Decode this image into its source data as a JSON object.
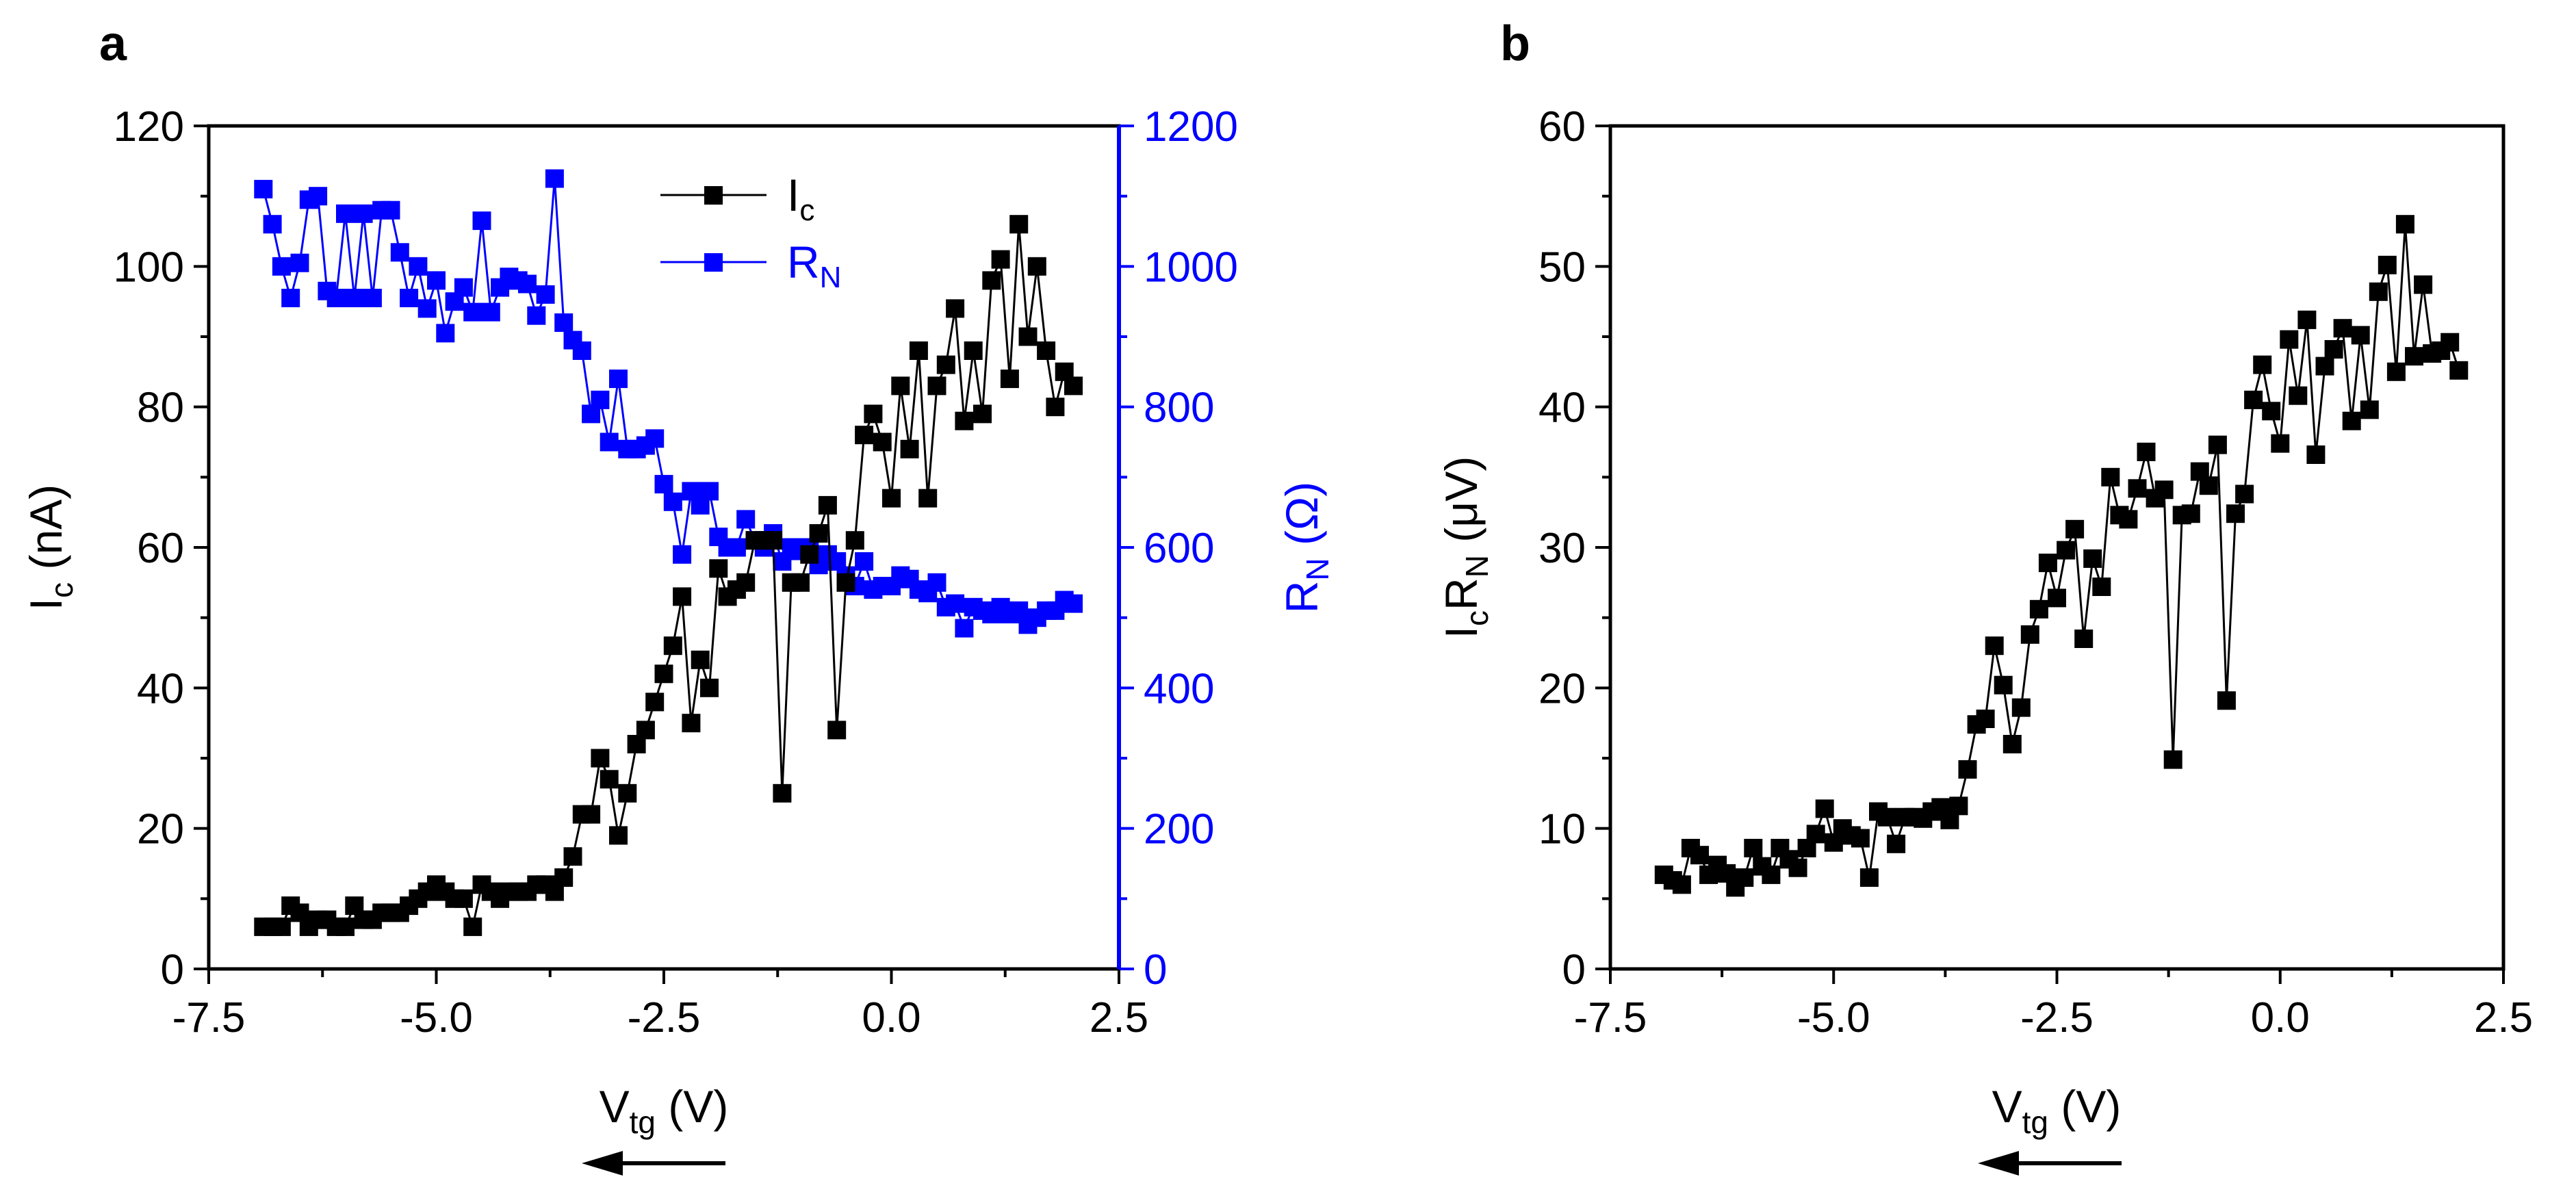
{
  "chart_data": [
    {
      "panel": "a",
      "type": "scatter",
      "xlabel": "V",
      "xlabel_sub": "tg",
      "xlabel_unit": " (V)",
      "ylabel_left": "I",
      "ylabel_left_sub": "c",
      "ylabel_left_unit": " (nA)",
      "ylabel_right": "R",
      "ylabel_right_sub": "N",
      "ylabel_right_unit": " (Ω)",
      "xlim": [
        -7.5,
        2.5
      ],
      "ylim_left": [
        0,
        120
      ],
      "ylim_right": [
        0,
        1200
      ],
      "xticks": [
        -7.5,
        -5.0,
        -2.5,
        0.0,
        2.5
      ],
      "xtick_labels": [
        "-7.5",
        "-5.0",
        "-2.5",
        "0.0",
        "2.5"
      ],
      "yticks_left": [
        0,
        20,
        40,
        60,
        80,
        100,
        120
      ],
      "ytick_labels_left": [
        "0",
        "20",
        "40",
        "60",
        "80",
        "100",
        "120"
      ],
      "yticks_right": [
        0,
        200,
        400,
        600,
        800,
        1000,
        1200
      ],
      "ytick_labels_right": [
        "0",
        "200",
        "400",
        "600",
        "800",
        "1000",
        "1200"
      ],
      "legend": [
        {
          "label": "I",
          "sub": "c",
          "color": "#000000"
        },
        {
          "label": "R",
          "sub": "N",
          "color": "#0000ff"
        }
      ],
      "series": [
        {
          "name": "Ic",
          "axis": "left",
          "color": "#000000",
          "x": [
            -6.9,
            -6.8,
            -6.7,
            -6.6,
            -6.5,
            -6.4,
            -6.3,
            -6.2,
            -6.1,
            -6.0,
            -5.9,
            -5.8,
            -5.7,
            -5.6,
            -5.5,
            -5.4,
            -5.3,
            -5.2,
            -5.1,
            -5.0,
            -4.9,
            -4.8,
            -4.7,
            -4.6,
            -4.5,
            -4.4,
            -4.3,
            -4.2,
            -4.1,
            -4.0,
            -3.9,
            -3.8,
            -3.7,
            -3.6,
            -3.5,
            -3.4,
            -3.3,
            -3.2,
            -3.1,
            -3.0,
            -2.9,
            -2.8,
            -2.7,
            -2.6,
            -2.5,
            -2.4,
            -2.3,
            -2.2,
            -2.1,
            -2.0,
            -1.9,
            -1.8,
            -1.7,
            -1.6,
            -1.5,
            -1.4,
            -1.3,
            -1.2,
            -1.1,
            -1.0,
            -0.9,
            -0.8,
            -0.7,
            -0.6,
            -0.5,
            -0.4,
            -0.3,
            -0.2,
            -0.1,
            0.0,
            0.1,
            0.2,
            0.3,
            0.4,
            0.5,
            0.6,
            0.7,
            0.8,
            0.9,
            1.0,
            1.1,
            1.2,
            1.3,
            1.4,
            1.5,
            1.6,
            1.7,
            1.8,
            1.9,
            2.0
          ],
          "y": [
            6,
            6,
            6,
            9,
            8,
            6,
            7,
            7,
            6,
            6,
            9,
            7,
            7,
            8,
            8,
            8,
            9,
            10,
            11,
            12,
            11,
            10,
            10,
            6,
            12,
            11,
            10,
            11,
            11,
            11,
            12,
            12,
            11,
            13,
            16,
            22,
            22,
            30,
            27,
            19,
            25,
            32,
            34,
            38,
            42,
            46,
            53,
            35,
            44,
            40,
            57,
            53,
            54,
            55,
            61,
            61,
            61,
            25,
            55,
            55,
            59,
            62,
            66,
            34,
            55,
            61,
            76,
            79,
            75,
            67,
            83,
            74,
            88,
            67,
            83,
            86,
            94,
            78,
            88,
            79,
            98,
            101,
            84,
            106,
            90,
            100,
            88,
            80,
            85,
            83
          ]
        },
        {
          "name": "RN",
          "axis": "right",
          "color": "#0000ff",
          "x": [
            -6.9,
            -6.8,
            -6.7,
            -6.6,
            -6.5,
            -6.4,
            -6.3,
            -6.2,
            -6.1,
            -6.0,
            -5.9,
            -5.8,
            -5.7,
            -5.6,
            -5.5,
            -5.4,
            -5.3,
            -5.2,
            -5.1,
            -5.0,
            -4.9,
            -4.8,
            -4.7,
            -4.6,
            -4.5,
            -4.4,
            -4.3,
            -4.2,
            -4.1,
            -4.0,
            -3.9,
            -3.8,
            -3.7,
            -3.6,
            -3.5,
            -3.4,
            -3.3,
            -3.2,
            -3.1,
            -3.0,
            -2.9,
            -2.8,
            -2.7,
            -2.6,
            -2.5,
            -2.4,
            -2.3,
            -2.2,
            -2.1,
            -2.0,
            -1.9,
            -1.8,
            -1.7,
            -1.6,
            -1.5,
            -1.4,
            -1.3,
            -1.2,
            -1.1,
            -1.0,
            -0.9,
            -0.8,
            -0.7,
            -0.6,
            -0.5,
            -0.4,
            -0.3,
            -0.2,
            -0.1,
            0.0,
            0.1,
            0.2,
            0.3,
            0.4,
            0.5,
            0.6,
            0.7,
            0.8,
            0.9,
            1.0,
            1.1,
            1.2,
            1.3,
            1.4,
            1.5,
            1.6,
            1.7,
            1.8,
            1.9,
            2.0
          ],
          "y": [
            1110,
            1060,
            1000,
            955,
            1005,
            1095,
            1100,
            965,
            955,
            1075,
            955,
            1075,
            955,
            1080,
            1080,
            1020,
            955,
            1000,
            940,
            980,
            905,
            950,
            970,
            935,
            1065,
            935,
            970,
            985,
            980,
            975,
            930,
            960,
            1125,
            920,
            895,
            880,
            790,
            810,
            750,
            840,
            740,
            740,
            745,
            755,
            690,
            665,
            590,
            680,
            660,
            680,
            615,
            600,
            600,
            640,
            610,
            600,
            620,
            580,
            600,
            595,
            600,
            575,
            590,
            580,
            560,
            545,
            580,
            540,
            545,
            545,
            560,
            555,
            540,
            535,
            550,
            515,
            520,
            485,
            515,
            510,
            505,
            515,
            505,
            510,
            490,
            500,
            510,
            510,
            525,
            520
          ]
        }
      ]
    },
    {
      "panel": "b",
      "type": "scatter",
      "xlabel": "V",
      "xlabel_sub": "tg",
      "xlabel_unit": " (V)",
      "ylabel_left": "I",
      "ylabel_left_sub": "c",
      "ylabel_left_mid": "R",
      "ylabel_left_sub2": "N",
      "ylabel_left_unit": " (μV)",
      "xlim": [
        -7.5,
        2.5
      ],
      "ylim_left": [
        0,
        60
      ],
      "xticks": [
        -7.5,
        -5.0,
        -2.5,
        0.0,
        2.5
      ],
      "xtick_labels": [
        "-7.5",
        "-5.0",
        "-2.5",
        "0.0",
        "2.5"
      ],
      "yticks_left": [
        0,
        10,
        20,
        30,
        40,
        50,
        60
      ],
      "ytick_labels_left": [
        "0",
        "10",
        "20",
        "30",
        "40",
        "50",
        "60"
      ],
      "series": [
        {
          "name": "IcRN",
          "axis": "left",
          "color": "#000000",
          "x": [
            -6.9,
            -6.8,
            -6.7,
            -6.6,
            -6.5,
            -6.4,
            -6.3,
            -6.2,
            -6.1,
            -6.0,
            -5.9,
            -5.8,
            -5.7,
            -5.6,
            -5.5,
            -5.4,
            -5.3,
            -5.2,
            -5.1,
            -5.0,
            -4.9,
            -4.8,
            -4.7,
            -4.6,
            -4.5,
            -4.4,
            -4.3,
            -4.2,
            -4.1,
            -4.0,
            -3.9,
            -3.8,
            -3.7,
            -3.6,
            -3.5,
            -3.4,
            -3.3,
            -3.2,
            -3.1,
            -3.0,
            -2.9,
            -2.8,
            -2.7,
            -2.6,
            -2.5,
            -2.4,
            -2.3,
            -2.2,
            -2.1,
            -2.0,
            -1.9,
            -1.8,
            -1.7,
            -1.6,
            -1.5,
            -1.4,
            -1.3,
            -1.2,
            -1.1,
            -1.0,
            -0.9,
            -0.8,
            -0.7,
            -0.6,
            -0.5,
            -0.4,
            -0.3,
            -0.2,
            -0.1,
            0.0,
            0.1,
            0.2,
            0.3,
            0.4,
            0.5,
            0.6,
            0.7,
            0.8,
            0.9,
            1.0,
            1.1,
            1.2,
            1.3,
            1.4,
            1.5,
            1.6,
            1.7,
            1.8,
            1.9,
            2.0
          ],
          "y": [
            6.7,
            6.3,
            6.0,
            8.6,
            8.1,
            6.7,
            7.4,
            6.8,
            5.8,
            6.5,
            8.6,
            7.3,
            6.7,
            8.6,
            7.8,
            7.2,
            8.6,
            9.6,
            11.4,
            9.0,
            10.0,
            9.5,
            9.3,
            6.5,
            11.2,
            10.8,
            8.9,
            10.8,
            10.8,
            10.7,
            11.2,
            11.5,
            10.6,
            11.6,
            14.2,
            17.4,
            17.8,
            23.0,
            20.2,
            16.0,
            18.6,
            23.8,
            25.6,
            28.9,
            26.4,
            29.8,
            31.3,
            23.5,
            29.2,
            27.2,
            35.0,
            32.3,
            32.0,
            34.2,
            36.8,
            33.5,
            34.1,
            14.9,
            32.3,
            32.4,
            35.4,
            34.4,
            37.3,
            19.1,
            32.4,
            33.8,
            40.5,
            43.0,
            39.7,
            37.4,
            44.8,
            40.8,
            46.2,
            36.6,
            42.9,
            44.1,
            45.6,
            39.0,
            45.1,
            39.8,
            48.2,
            50.1,
            42.5,
            53.0,
            43.6,
            48.7,
            43.8,
            44.0,
            44.6,
            42.6
          ]
        }
      ]
    }
  ],
  "panels": {
    "a_label": "a",
    "b_label": "b"
  },
  "colors": {
    "black": "#000000",
    "blue": "#0000ff"
  }
}
